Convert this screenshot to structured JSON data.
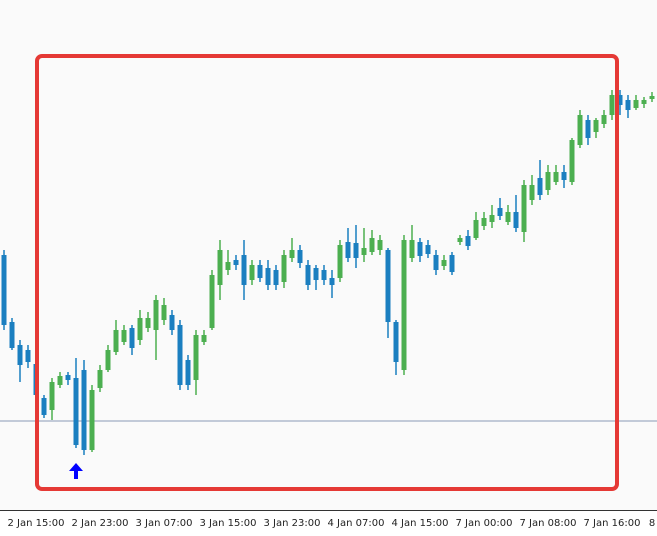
{
  "chart_data": {
    "type": "candlestick",
    "categories": [
      null,
      null,
      null,
      null,
      "2 Jan 15:00",
      null,
      null,
      null,
      null,
      null,
      null,
      null,
      "2 Jan 23:00",
      null,
      null,
      null,
      null,
      null,
      null,
      null,
      "3 Jan 07:00",
      null,
      null,
      null,
      null,
      null,
      null,
      null,
      "3 Jan 15:00",
      null,
      null,
      null,
      null,
      null,
      null,
      null,
      "3 Jan 23:00",
      null,
      null,
      null,
      null,
      null,
      null,
      null,
      "4 Jan 07:00",
      null,
      null,
      null,
      null,
      null,
      null,
      null,
      "4 Jan 15:00",
      null,
      null,
      null,
      null,
      null,
      null,
      null,
      "7 Jan 00:00",
      null,
      null,
      null,
      null,
      null,
      null,
      null,
      "7 Jan 08:00",
      null,
      null,
      null,
      null,
      null,
      null,
      null,
      "7 Jan 16:00",
      null,
      null,
      null,
      null,
      "8"
    ],
    "open": [
      345,
      278,
      255,
      250,
      236,
      202,
      190,
      215,
      225,
      222,
      230,
      150,
      212,
      230,
      248,
      258,
      272,
      260,
      272,
      270,
      280,
      285,
      275,
      240,
      220,
      258,
      272,
      315,
      330,
      340,
      345,
      320,
      335,
      332,
      330,
      318,
      342,
      350,
      335,
      332,
      330,
      322,
      322,
      358,
      357,
      345,
      348,
      350,
      350,
      278,
      230,
      342,
      358,
      355,
      345,
      334,
      345,
      358,
      364,
      362,
      374,
      378,
      392,
      378,
      388,
      368,
      400,
      422,
      410,
      418,
      428,
      418,
      455,
      480,
      468,
      476,
      485,
      505,
      500,
      492,
      496,
      501
    ],
    "high": [
      350,
      282,
      260,
      255,
      240,
      205,
      222,
      228,
      228,
      242,
      240,
      215,
      235,
      255,
      280,
      275,
      275,
      290,
      288,
      305,
      302,
      290,
      280,
      245,
      270,
      270,
      330,
      360,
      350,
      345,
      360,
      340,
      340,
      340,
      335,
      350,
      362,
      355,
      340,
      335,
      335,
      330,
      360,
      372,
      375,
      372,
      370,
      365,
      352,
      280,
      365,
      375,
      362,
      360,
      350,
      345,
      348,
      365,
      370,
      388,
      388,
      395,
      402,
      395,
      405,
      420,
      425,
      440,
      435,
      435,
      435,
      462,
      490,
      485,
      482,
      490,
      510,
      510,
      505,
      505,
      503,
      508
    ],
    "low": [
      270,
      250,
      218,
      232,
      200,
      182,
      180,
      212,
      215,
      152,
      145,
      148,
      208,
      228,
      245,
      255,
      245,
      255,
      268,
      240,
      275,
      265,
      210,
      210,
      205,
      255,
      270,
      300,
      325,
      330,
      300,
      315,
      318,
      310,
      310,
      312,
      338,
      332,
      310,
      310,
      315,
      302,
      318,
      338,
      332,
      338,
      345,
      345,
      262,
      225,
      225,
      338,
      338,
      342,
      325,
      330,
      325,
      355,
      350,
      360,
      370,
      372,
      380,
      375,
      368,
      358,
      395,
      400,
      405,
      415,
      412,
      415,
      452,
      455,
      462,
      472,
      480,
      485,
      482,
      490,
      492,
      498
    ],
    "close": [
      275,
      252,
      235,
      238,
      205,
      185,
      218,
      224,
      220,
      155,
      150,
      210,
      230,
      250,
      270,
      270,
      252,
      282,
      282,
      300,
      295,
      270,
      215,
      215,
      265,
      265,
      325,
      350,
      338,
      335,
      315,
      335,
      322,
      315,
      315,
      345,
      350,
      337,
      315,
      320,
      320,
      315,
      355,
      342,
      342,
      352,
      362,
      360,
      278,
      238,
      360,
      360,
      344,
      346,
      330,
      340,
      328,
      362,
      354,
      380,
      382,
      385,
      384,
      388,
      372,
      415,
      415,
      405,
      428,
      428,
      420,
      460,
      485,
      462,
      480,
      485,
      505,
      495,
      490,
      500,
      500,
      504
    ],
    "up_color": "#4caf50",
    "down_color": "#1b7fc0",
    "ylim": [
      90,
      600
    ],
    "hline": 179,
    "hline_color": "#8a9bb5"
  }
}
